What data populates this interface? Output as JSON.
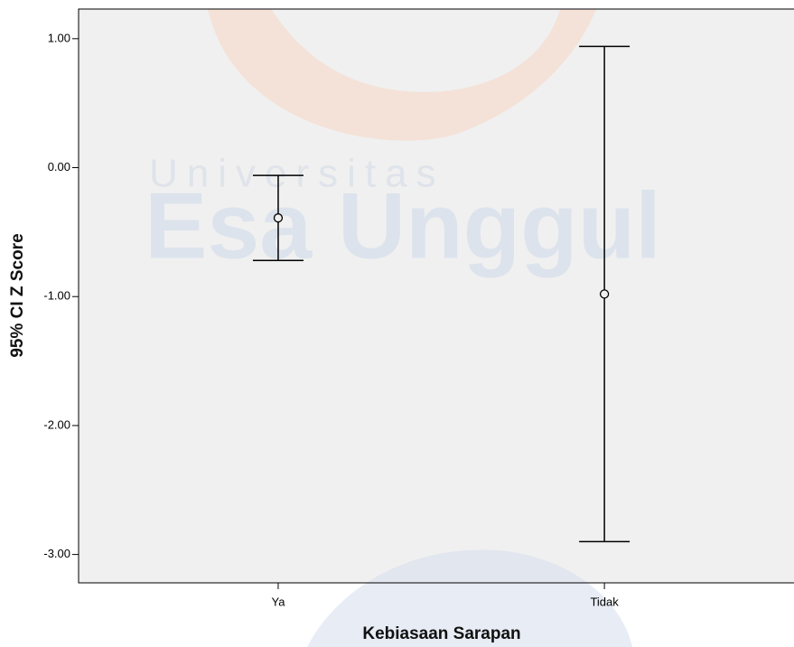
{
  "chart_data": {
    "type": "errorbar",
    "xlabel": "Kebiasaan Sarapan",
    "ylabel": "95% CI Z Score",
    "watermark": [
      "Universitas",
      "Esa Unggul"
    ],
    "categories": [
      "Ya",
      "Tidak"
    ],
    "values": [
      -0.39,
      -0.98
    ],
    "upper": [
      -0.06,
      0.94
    ],
    "lower": [
      -0.72,
      -2.9
    ],
    "color": "#000000",
    "ylim": [
      -3.22,
      1.23
    ],
    "yticks": [
      {
        "value": 1,
        "label": "1.00"
      },
      {
        "value": 0,
        "label": "0.00"
      },
      {
        "value": -1,
        "label": "-1.00"
      },
      {
        "value": -2,
        "label": "-2.00"
      },
      {
        "value": -3,
        "label": "-3.00"
      }
    ]
  }
}
